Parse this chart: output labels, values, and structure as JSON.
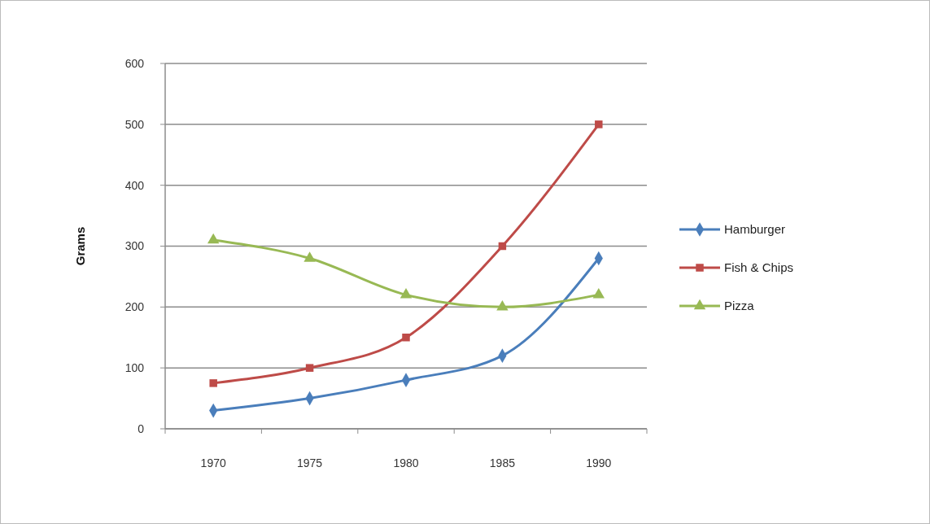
{
  "chart_data": {
    "type": "line",
    "ylabel": "Grams",
    "categories": [
      "1970",
      "1975",
      "1980",
      "1985",
      "1990"
    ],
    "series": [
      {
        "name": "Hamburger",
        "color": "#4a7ebb",
        "marker": "diamond",
        "values": [
          30,
          50,
          80,
          120,
          280
        ]
      },
      {
        "name": "Fish & Chips",
        "color": "#be4b48",
        "marker": "square",
        "values": [
          75,
          100,
          150,
          300,
          500
        ]
      },
      {
        "name": "Pizza",
        "color": "#98b954",
        "marker": "triangle",
        "values": [
          310,
          280,
          220,
          200,
          220
        ]
      }
    ],
    "ylim": [
      0,
      600
    ],
    "yticks": [
      0,
      100,
      200,
      300,
      400,
      500,
      600
    ],
    "grid": "y",
    "legend": "right",
    "line_style": "solid"
  }
}
